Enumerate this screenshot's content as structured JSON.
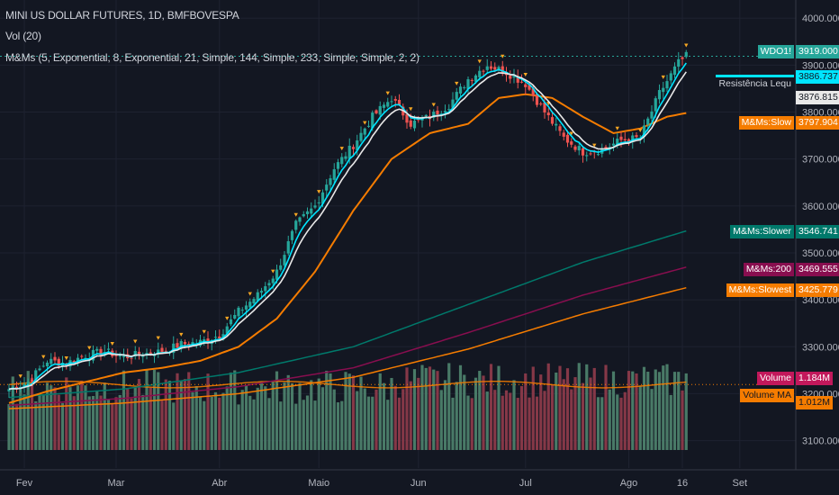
{
  "legend": {
    "title": "MINI US DOLLAR FUTURES, 1D, BMFBOVESPA",
    "volume": "Vol (20)",
    "indicator": "M&Ms (5, Exponential, 8, Exponential, 21, Simple, 144, Simple, 233, Simple, Simple, 2, 2)"
  },
  "price_tags": [
    {
      "name": "WDO1!",
      "value": "3919.000",
      "color": "#26a69a",
      "text_color": "#ffffff",
      "price": 3919
    },
    {
      "name": "Resistência Lequ",
      "value": "3886.737",
      "color": "#00e5ff",
      "text_color": "#131722",
      "price": 3886.737
    },
    {
      "name": "",
      "value": "3876.815",
      "color": "#e8e8e8",
      "text_color": "#131722",
      "price": 3876.815
    },
    {
      "name": "M&Ms:Slow",
      "value": "3797.904",
      "color": "#f57c00",
      "text_color": "#ffffff",
      "price": 3797.904
    },
    {
      "name": "M&Ms:Slower",
      "value": "3546.741",
      "color": "#00796b",
      "text_color": "#ffffff",
      "price": 3546.741
    },
    {
      "name": "M&Ms:200",
      "value": "3469.555",
      "color": "#880e4f",
      "text_color": "#ffffff",
      "price": 3469.555
    },
    {
      "name": "M&Ms:Slowest",
      "value": "3425.779",
      "color": "#f57c00",
      "text_color": "#ffffff",
      "price": 3425.779
    }
  ],
  "volume_tags": [
    {
      "name": "Volume",
      "value": "1.184M",
      "color": "#c2185b",
      "text_color": "#ffffff"
    },
    {
      "name": "Volume MA",
      "value": "1.012M",
      "color": "#f57c00",
      "text_color": "#131722"
    }
  ],
  "chart_data": {
    "type": "candlestick",
    "price_axis": {
      "min": 3080,
      "max": 4010,
      "ticks": [
        "4000.000",
        "3900.000",
        "3800.000",
        "3700.000",
        "3600.000",
        "3500.000",
        "3400.000",
        "3300.000",
        "3200.000",
        "3100.000"
      ]
    },
    "time_axis": {
      "labels": [
        "Fev",
        "Mar",
        "Abr",
        "Maio",
        "Jun",
        "Jul",
        "Ago",
        "16",
        "Set"
      ]
    },
    "grid": "on",
    "colors": {
      "up": "#26a69a",
      "down": "#ef5350",
      "fast": "#00e5ff",
      "slow": "#f57c00",
      "slower": "#00796b",
      "ma200": "#880e4f",
      "slowest": "#f57c00",
      "vol_up": "#4c7f6b",
      "vol_down": "#8b3a4a"
    },
    "series_anchors": {
      "close": [
        [
          0,
          3210
        ],
        [
          5,
          3225
        ],
        [
          10,
          3270
        ],
        [
          15,
          3265
        ],
        [
          20,
          3282
        ],
        [
          25,
          3290
        ],
        [
          30,
          3278
        ],
        [
          35,
          3285
        ],
        [
          40,
          3290
        ],
        [
          45,
          3305
        ],
        [
          50,
          3310
        ],
        [
          55,
          3325
        ],
        [
          60,
          3375
        ],
        [
          65,
          3410
        ],
        [
          70,
          3460
        ],
        [
          75,
          3560
        ],
        [
          80,
          3600
        ],
        [
          85,
          3680
        ],
        [
          90,
          3730
        ],
        [
          95,
          3790
        ],
        [
          100,
          3830
        ],
        [
          105,
          3775
        ],
        [
          110,
          3790
        ],
        [
          115,
          3815
        ],
        [
          120,
          3870
        ],
        [
          125,
          3900
        ],
        [
          130,
          3885
        ],
        [
          135,
          3860
        ],
        [
          140,
          3800
        ],
        [
          145,
          3745
        ],
        [
          150,
          3715
        ],
        [
          155,
          3720
        ],
        [
          160,
          3740
        ],
        [
          165,
          3745
        ],
        [
          170,
          3840
        ],
        [
          175,
          3905
        ],
        [
          177,
          3919
        ]
      ],
      "slow": [
        [
          0,
          3180
        ],
        [
          10,
          3205
        ],
        [
          20,
          3225
        ],
        [
          30,
          3245
        ],
        [
          40,
          3255
        ],
        [
          50,
          3270
        ],
        [
          60,
          3300
        ],
        [
          70,
          3360
        ],
        [
          80,
          3460
        ],
        [
          90,
          3590
        ],
        [
          100,
          3700
        ],
        [
          110,
          3755
        ],
        [
          120,
          3775
        ],
        [
          128,
          3830
        ],
        [
          135,
          3838
        ],
        [
          142,
          3830
        ],
        [
          150,
          3790
        ],
        [
          158,
          3755
        ],
        [
          165,
          3765
        ],
        [
          172,
          3790
        ],
        [
          177,
          3798
        ]
      ],
      "slower": [
        [
          0,
          3192
        ],
        [
          30,
          3210
        ],
        [
          60,
          3245
        ],
        [
          90,
          3300
        ],
        [
          120,
          3390
        ],
        [
          150,
          3480
        ],
        [
          177,
          3546.741
        ]
      ],
      "ma200": [
        [
          0,
          3175
        ],
        [
          30,
          3190
        ],
        [
          60,
          3215
        ],
        [
          90,
          3255
        ],
        [
          120,
          3330
        ],
        [
          150,
          3410
        ],
        [
          177,
          3469.555
        ]
      ],
      "slowest": [
        [
          0,
          3168
        ],
        [
          30,
          3180
        ],
        [
          60,
          3200
        ],
        [
          90,
          3235
        ],
        [
          120,
          3295
        ],
        [
          150,
          3370
        ],
        [
          177,
          3425.779
        ]
      ]
    },
    "volume_ma_level": 1.012,
    "last_volume": 1.184,
    "date_tick_index": {
      "Fev": 4,
      "Mar": 28,
      "Abr": 55,
      "Maio": 81,
      "Jun": 107,
      "Jul": 135,
      "Ago": 162,
      "16": 176,
      "Set": 191
    }
  }
}
